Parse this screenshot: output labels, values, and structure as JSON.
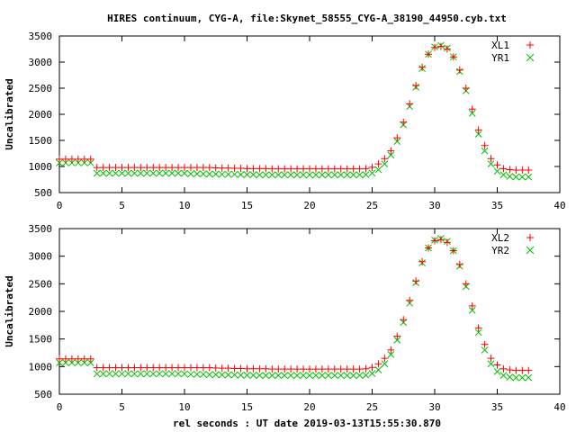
{
  "figure": {
    "title": "HIRES continuum, CYG-A, file:Skynet_58555_CYG-A_38190_44950.cyb.txt",
    "xlabel": "rel seconds : UT date 2019-03-13T15:55:30.870"
  },
  "colors": {
    "red": "#ff0000",
    "green": "#00c000",
    "frame": "#000000"
  },
  "chart_data": [
    {
      "type": "scatter",
      "ylabel": "Uncalibrated",
      "xlim": [
        0,
        40
      ],
      "ylim": [
        500,
        3500
      ],
      "xticks": [
        0,
        5,
        10,
        15,
        20,
        25,
        30,
        35,
        40
      ],
      "yticks": [
        500,
        1000,
        1500,
        2000,
        2500,
        3000,
        3500
      ],
      "grid": false,
      "legend_position": "top-right",
      "x": [
        0.0,
        0.5,
        1.0,
        1.5,
        2.0,
        2.5,
        3.0,
        3.5,
        4.0,
        4.5,
        5.0,
        5.5,
        6.0,
        6.5,
        7.0,
        7.5,
        8.0,
        8.5,
        9.0,
        9.5,
        10.0,
        10.5,
        11.0,
        11.5,
        12.0,
        12.5,
        13.0,
        13.5,
        14.0,
        14.5,
        15.0,
        15.5,
        16.0,
        16.5,
        17.0,
        17.5,
        18.0,
        18.5,
        19.0,
        19.5,
        20.0,
        20.5,
        21.0,
        21.5,
        22.0,
        22.5,
        23.0,
        23.5,
        24.0,
        24.5,
        25.0,
        25.5,
        26.0,
        26.5,
        27.0,
        27.5,
        28.0,
        28.5,
        29.0,
        29.5,
        30.0,
        30.5,
        31.0,
        31.5,
        32.0,
        32.5,
        33.0,
        33.5,
        34.0,
        34.5,
        35.0,
        35.5,
        36.0,
        36.5,
        37.0,
        37.5
      ],
      "series": [
        {
          "name": "XL1",
          "marker": "plus",
          "color": "#ff0000",
          "values": [
            1140,
            1140,
            1140,
            1140,
            1140,
            1140,
            980,
            980,
            980,
            980,
            980,
            980,
            980,
            980,
            980,
            980,
            980,
            980,
            980,
            980,
            980,
            980,
            980,
            980,
            980,
            975,
            970,
            970,
            965,
            965,
            960,
            960,
            960,
            960,
            955,
            955,
            955,
            955,
            955,
            955,
            955,
            955,
            955,
            955,
            955,
            955,
            955,
            955,
            955,
            960,
            985,
            1050,
            1150,
            1300,
            1550,
            1850,
            2200,
            2550,
            2900,
            3150,
            3280,
            3300,
            3250,
            3100,
            2850,
            2500,
            2100,
            1700,
            1400,
            1150,
            1030,
            960,
            940,
            930,
            930,
            930
          ]
        },
        {
          "name": "YR1",
          "marker": "cross",
          "color": "#00c000",
          "values": [
            1070,
            1070,
            1070,
            1070,
            1070,
            1070,
            870,
            870,
            870,
            870,
            870,
            870,
            870,
            870,
            870,
            870,
            870,
            870,
            870,
            870,
            870,
            860,
            860,
            860,
            855,
            855,
            850,
            850,
            850,
            845,
            845,
            845,
            840,
            840,
            840,
            840,
            840,
            840,
            840,
            840,
            840,
            840,
            840,
            840,
            840,
            840,
            840,
            840,
            840,
            845,
            875,
            940,
            1050,
            1220,
            1480,
            1800,
            2150,
            2520,
            2880,
            3150,
            3290,
            3320,
            3270,
            3100,
            2820,
            2450,
            2020,
            1620,
            1300,
            1050,
            910,
            840,
            810,
            800,
            800,
            800
          ]
        }
      ]
    },
    {
      "type": "scatter",
      "ylabel": "Uncalibrated",
      "xlim": [
        0,
        40
      ],
      "ylim": [
        500,
        3500
      ],
      "xticks": [
        0,
        5,
        10,
        15,
        20,
        25,
        30,
        35,
        40
      ],
      "yticks": [
        500,
        1000,
        1500,
        2000,
        2500,
        3000,
        3500
      ],
      "grid": false,
      "legend_position": "top-right",
      "x": [
        0.0,
        0.5,
        1.0,
        1.5,
        2.0,
        2.5,
        3.0,
        3.5,
        4.0,
        4.5,
        5.0,
        5.5,
        6.0,
        6.5,
        7.0,
        7.5,
        8.0,
        8.5,
        9.0,
        9.5,
        10.0,
        10.5,
        11.0,
        11.5,
        12.0,
        12.5,
        13.0,
        13.5,
        14.0,
        14.5,
        15.0,
        15.5,
        16.0,
        16.5,
        17.0,
        17.5,
        18.0,
        18.5,
        19.0,
        19.5,
        20.0,
        20.5,
        21.0,
        21.5,
        22.0,
        22.5,
        23.0,
        23.5,
        24.0,
        24.5,
        25.0,
        25.5,
        26.0,
        26.5,
        27.0,
        27.5,
        28.0,
        28.5,
        29.0,
        29.5,
        30.0,
        30.5,
        31.0,
        31.5,
        32.0,
        32.5,
        33.0,
        33.5,
        34.0,
        34.5,
        35.0,
        35.5,
        36.0,
        36.5,
        37.0,
        37.5
      ],
      "series": [
        {
          "name": "XL2",
          "marker": "plus",
          "color": "#ff0000",
          "values": [
            1140,
            1140,
            1140,
            1140,
            1140,
            1140,
            980,
            980,
            980,
            980,
            980,
            980,
            980,
            980,
            980,
            980,
            980,
            980,
            980,
            980,
            980,
            980,
            980,
            980,
            980,
            975,
            970,
            970,
            965,
            965,
            960,
            960,
            960,
            960,
            955,
            955,
            955,
            955,
            955,
            955,
            955,
            955,
            955,
            955,
            955,
            955,
            955,
            955,
            955,
            960,
            985,
            1050,
            1150,
            1300,
            1550,
            1850,
            2200,
            2550,
            2900,
            3150,
            3280,
            3300,
            3250,
            3100,
            2850,
            2500,
            2100,
            1700,
            1400,
            1150,
            1030,
            960,
            940,
            930,
            930,
            930
          ]
        },
        {
          "name": "YR2",
          "marker": "cross",
          "color": "#00c000",
          "values": [
            1070,
            1070,
            1070,
            1070,
            1070,
            1070,
            870,
            870,
            870,
            870,
            870,
            870,
            870,
            870,
            870,
            870,
            870,
            870,
            870,
            870,
            870,
            860,
            860,
            860,
            855,
            855,
            850,
            850,
            850,
            845,
            845,
            845,
            840,
            840,
            840,
            840,
            840,
            840,
            840,
            840,
            840,
            840,
            840,
            840,
            840,
            840,
            840,
            840,
            840,
            845,
            875,
            940,
            1050,
            1220,
            1480,
            1800,
            2150,
            2520,
            2880,
            3150,
            3290,
            3320,
            3270,
            3100,
            2820,
            2450,
            2020,
            1620,
            1300,
            1050,
            910,
            840,
            810,
            800,
            800,
            800
          ]
        }
      ]
    }
  ]
}
